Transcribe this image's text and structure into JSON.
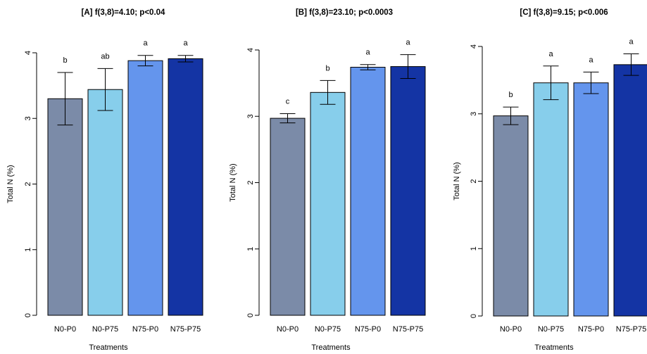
{
  "chart_data": [
    {
      "type": "bar",
      "title": "[A] f(3,8)=4.10; p<0.04",
      "xlabel": "Treatments",
      "ylabel": "Total N (%)",
      "ylim": [
        0,
        4
      ],
      "yticks": [
        "0",
        "1",
        "2",
        "3",
        "4"
      ],
      "categories": [
        "N0-P0",
        "N0-P75",
        "N75-P0",
        "N75-P75"
      ],
      "values": [
        3.3,
        3.44,
        3.88,
        3.91
      ],
      "errors": [
        0.4,
        0.32,
        0.08,
        0.05
      ],
      "letters": [
        "b",
        "ab",
        "a",
        "a"
      ],
      "colors": [
        "#7b8ba8",
        "#87ceeb",
        "#6495ed",
        "#1434a4"
      ]
    },
    {
      "type": "bar",
      "title": "[B] f(3,8)=23.10; p<0.0003",
      "xlabel": "Treatments",
      "ylabel": "Total N (%)",
      "ylim": [
        0,
        4
      ],
      "yticks": [
        "0",
        "1",
        "2",
        "3",
        "4"
      ],
      "categories": [
        "N0-P0",
        "N0-P75",
        "N75-P0",
        "N75-P75"
      ],
      "values": [
        2.97,
        3.36,
        3.74,
        3.75
      ],
      "errors": [
        0.07,
        0.18,
        0.04,
        0.18
      ],
      "letters": [
        "c",
        "b",
        "a",
        "a"
      ],
      "colors": [
        "#7b8ba8",
        "#87ceeb",
        "#6495ed",
        "#1434a4"
      ]
    },
    {
      "type": "bar",
      "title": "[C] f(3,8)=9.15; p<0.006",
      "xlabel": "Treatments",
      "ylabel": "Total N (%)",
      "ylim": [
        0,
        4
      ],
      "yticks": [
        "0",
        "1",
        "2",
        "3",
        "4"
      ],
      "categories": [
        "N0-P0",
        "N0-P75",
        "N75-P0",
        "N75-P75"
      ],
      "values": [
        2.97,
        3.46,
        3.46,
        3.73
      ],
      "errors": [
        0.13,
        0.25,
        0.16,
        0.16
      ],
      "letters": [
        "b",
        "a",
        "a",
        "a"
      ],
      "colors": [
        "#7b8ba8",
        "#87ceeb",
        "#6495ed",
        "#1434a4"
      ]
    }
  ]
}
